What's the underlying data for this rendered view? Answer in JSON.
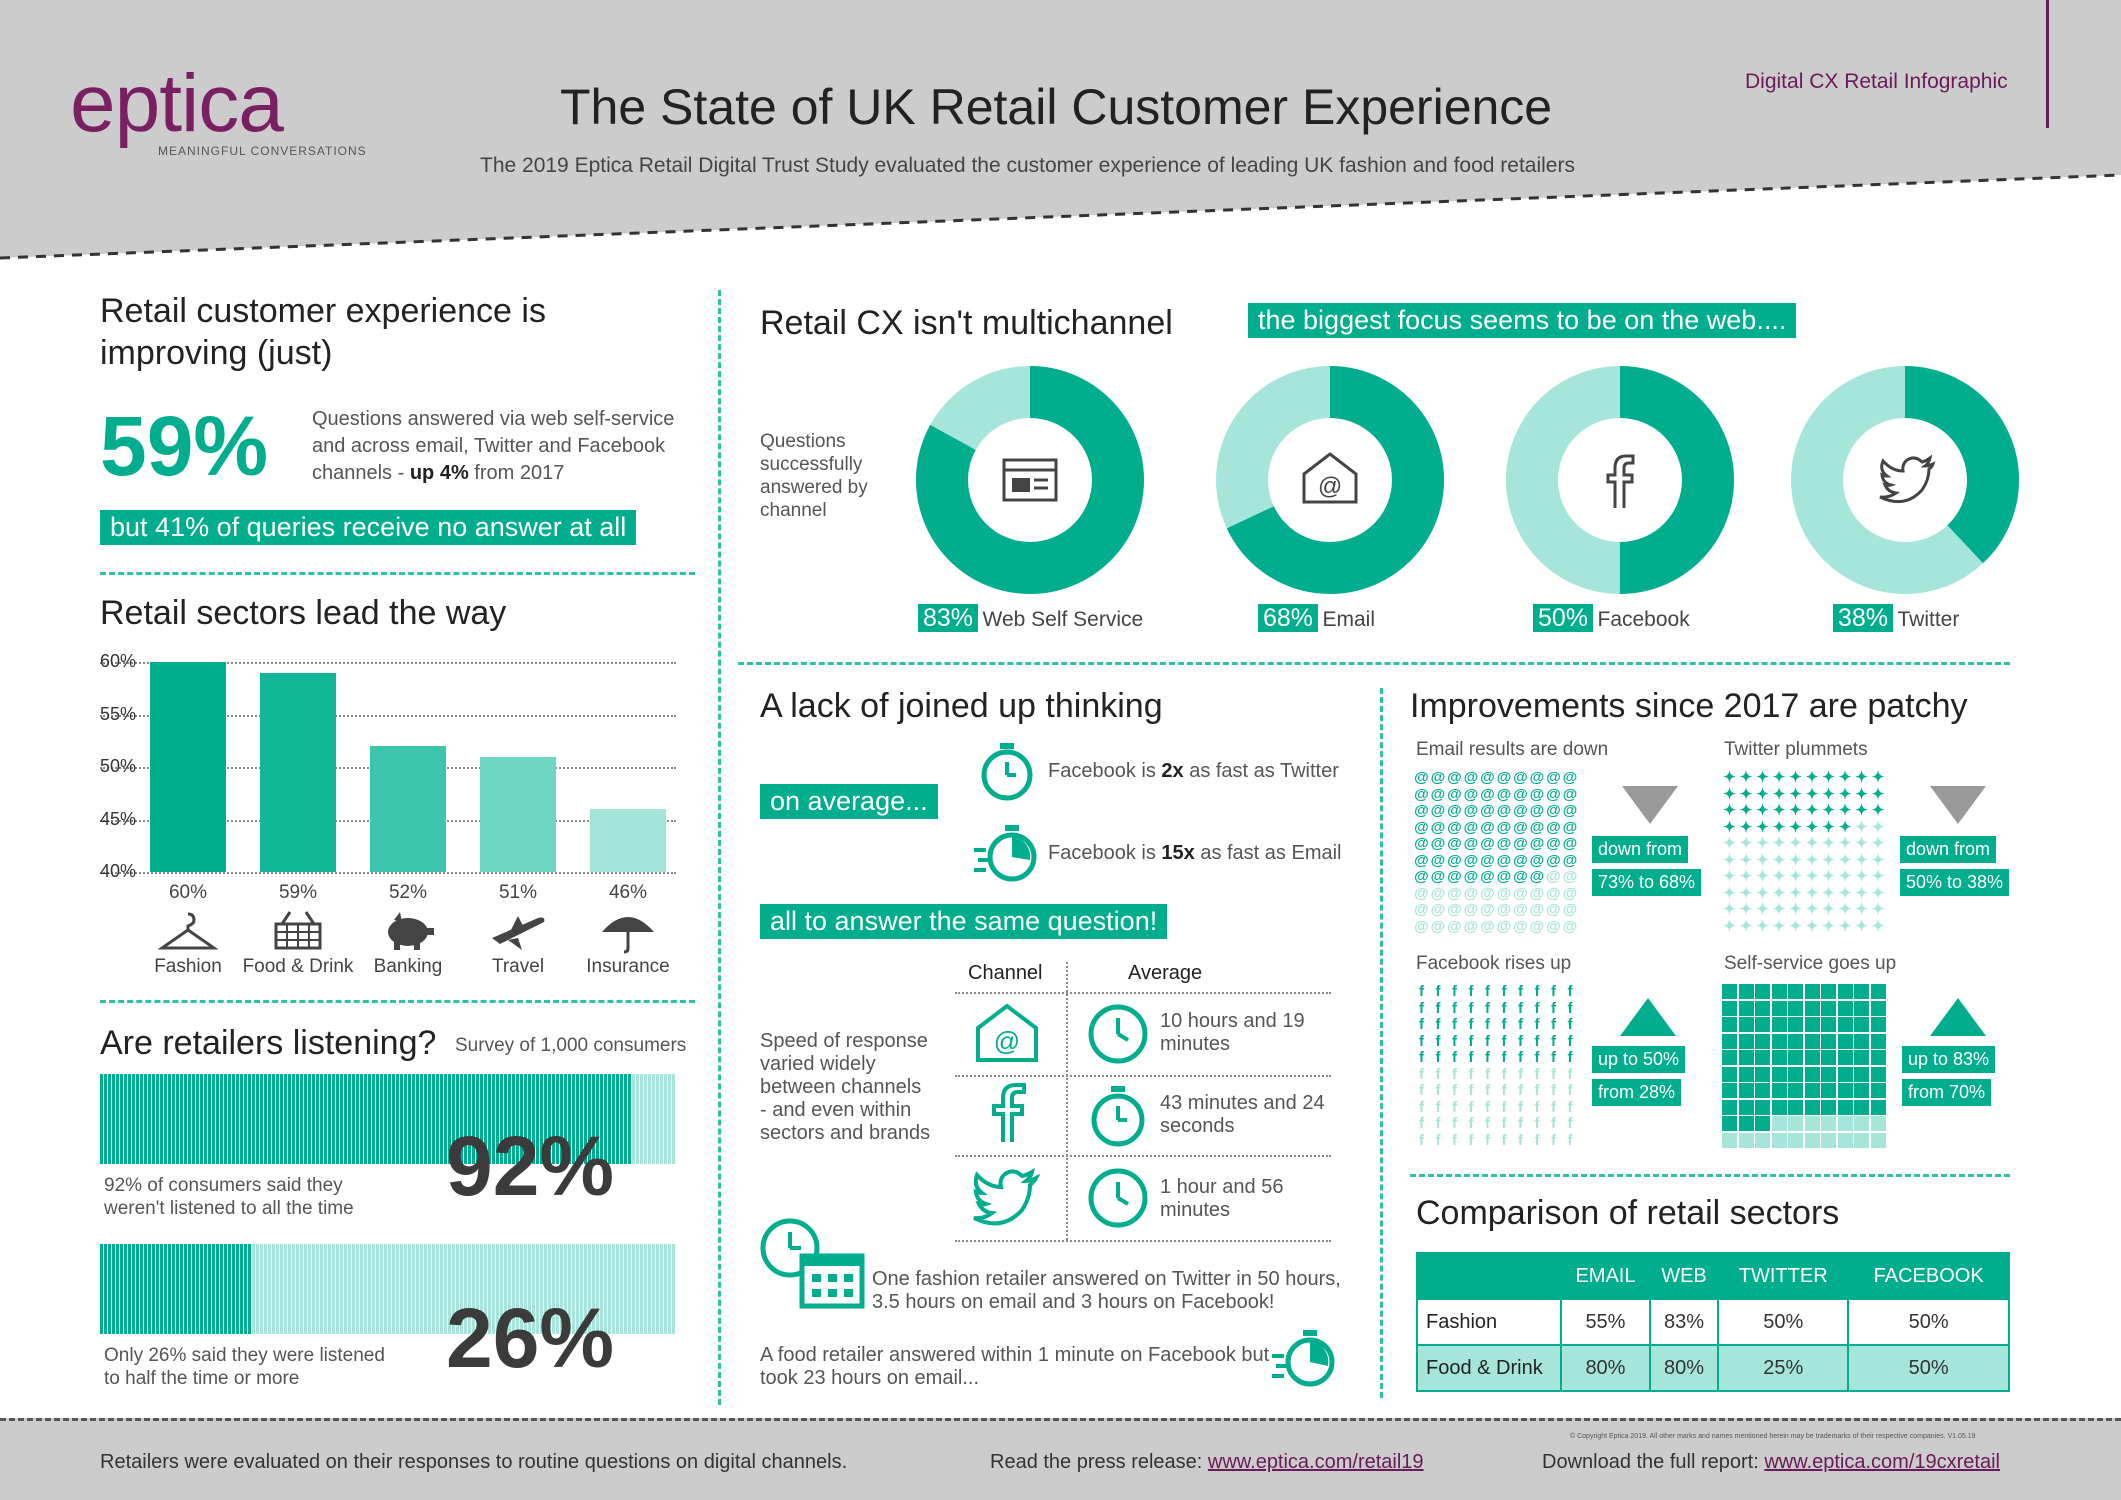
{
  "header": {
    "brand": "eptica",
    "tagline": "MEANINGFUL CONVERSATIONS",
    "title": "The State of UK Retail Customer Experience",
    "subtitle": "The 2019 Eptica Retail Digital Trust Study evaluated the customer experience of leading UK fashion and food retailers",
    "corner_label": "Digital CX Retail Infographic"
  },
  "improving": {
    "heading_line1": "Retail customer experience is",
    "heading_line2": "improving (just)",
    "big_pct": "59%",
    "desc1": "Questions answered via web self-service",
    "desc2": "and across email, Twitter and Facebook",
    "desc3_pre": "channels - ",
    "desc3_bold": "up 4%",
    "desc3_post": " from 2017",
    "banner": "but 41% of queries receive no answer at all"
  },
  "sectors": {
    "heading": "Retail sectors lead the way",
    "ticks": [
      "60%",
      "55%",
      "50%",
      "45%",
      "40%"
    ]
  },
  "chart_data": {
    "type": "bar",
    "categories": [
      "Fashion",
      "Food & Drink",
      "Banking",
      "Travel",
      "Insurance"
    ],
    "values": [
      60,
      59,
      52,
      51,
      46
    ],
    "value_labels": [
      "60%",
      "59%",
      "52%",
      "51%",
      "46%"
    ],
    "ylim": [
      40,
      60
    ],
    "colors": [
      "#00ae8e",
      "#12b797",
      "#3dc6ab",
      "#6dd5c1",
      "#a2e4d8"
    ]
  },
  "listening": {
    "heading": "Are retailers listening?",
    "survey": "Survey of 1,000 consumers",
    "stat1": "92%",
    "stat1_value": 92,
    "stat1_text1": "92% of consumers said they",
    "stat1_text2": "weren't listened to all the time",
    "stat2": "26%",
    "stat2_value": 26,
    "stat2_text1": "Only 26% said they were listened",
    "stat2_text2": "to half the time or more"
  },
  "multichannel": {
    "heading": "Retail CX isn't multichannel",
    "banner": "the biggest focus seems to be on the web....",
    "side1": "Questions",
    "side2": "successfully",
    "side3": "answered by",
    "side4": "channel",
    "donuts": [
      {
        "value": 83,
        "pct": "83%",
        "label": "Web Self Service",
        "icon": "browser-icon"
      },
      {
        "value": 68,
        "pct": "68%",
        "label": "Email",
        "icon": "email-icon"
      },
      {
        "value": 50,
        "pct": "50%",
        "label": "Facebook",
        "icon": "facebook-icon"
      },
      {
        "value": 38,
        "pct": "38%",
        "label": "Twitter",
        "icon": "twitter-icon"
      }
    ]
  },
  "joined": {
    "heading": "A lack of joined up thinking",
    "on_average": "on average...",
    "fb_tw_pre": "Facebook is ",
    "fb_tw_bold": "2x",
    "fb_tw_post": " as fast as Twitter",
    "fb_em_pre": "Facebook is ",
    "fb_em_bold": "15x",
    "fb_em_post": " as fast as Email",
    "same": "all to answer the same question!",
    "col_channel": "Channel",
    "col_average": "Average",
    "speed1": "Speed of response",
    "speed2": "varied widely",
    "speed3": "between channels",
    "speed4": "- and even within",
    "speed5": "sectors and brands",
    "rows": [
      {
        "icon": "email-icon",
        "l1": "10 hours and 19",
        "l2": "minutes"
      },
      {
        "icon": "facebook-icon",
        "l1": "43 minutes and 24",
        "l2": "seconds"
      },
      {
        "icon": "twitter-icon",
        "l1": "1 hour and 56",
        "l2": "minutes"
      }
    ],
    "fashion1": "One fashion retailer answered on Twitter in 50 hours,",
    "fashion2": "3.5 hours on email and 3 hours on Facebook!",
    "food1": "A food retailer answered within 1 minute on Facebook but",
    "food2": "took 23 hours on email..."
  },
  "improvements": {
    "heading": "Improvements since 2017 are patchy",
    "email": {
      "title": "Email results are down",
      "b1": "down from",
      "b2": "73% to 68%",
      "value": 68
    },
    "twitter": {
      "title": "Twitter plummets",
      "b1": "down from",
      "b2": "50% to 38%",
      "value": 38
    },
    "facebook": {
      "title": "Facebook rises up",
      "b1": "up to 50%",
      "b2": "from 28%",
      "value": 50
    },
    "self": {
      "title": "Self-service goes up",
      "b1": "up to 83%",
      "b2": "from 70%",
      "value": 83
    }
  },
  "comparison": {
    "heading": "Comparison of retail sectors",
    "cols": [
      "EMAIL",
      "WEB",
      "TWITTER",
      "FACEBOOK"
    ],
    "rows": [
      {
        "name": "Fashion",
        "vals": [
          "55%",
          "83%",
          "50%",
          "50%"
        ]
      },
      {
        "name": "Food & Drink",
        "vals": [
          "80%",
          "80%",
          "25%",
          "50%"
        ]
      }
    ]
  },
  "footer": {
    "copyright": "© Copyright Eptica 2019. All other marks and names mentioned herein may be trademarks of their respective companies. V1.05.19",
    "left": "Retailers were evaluated on their responses to routine questions on digital channels.",
    "press_label": "Read the press release: ",
    "press_link": "www.eptica.com/retail19",
    "report_label": "Download the full report: ",
    "report_link": "www.eptica.com/19cxretail"
  }
}
